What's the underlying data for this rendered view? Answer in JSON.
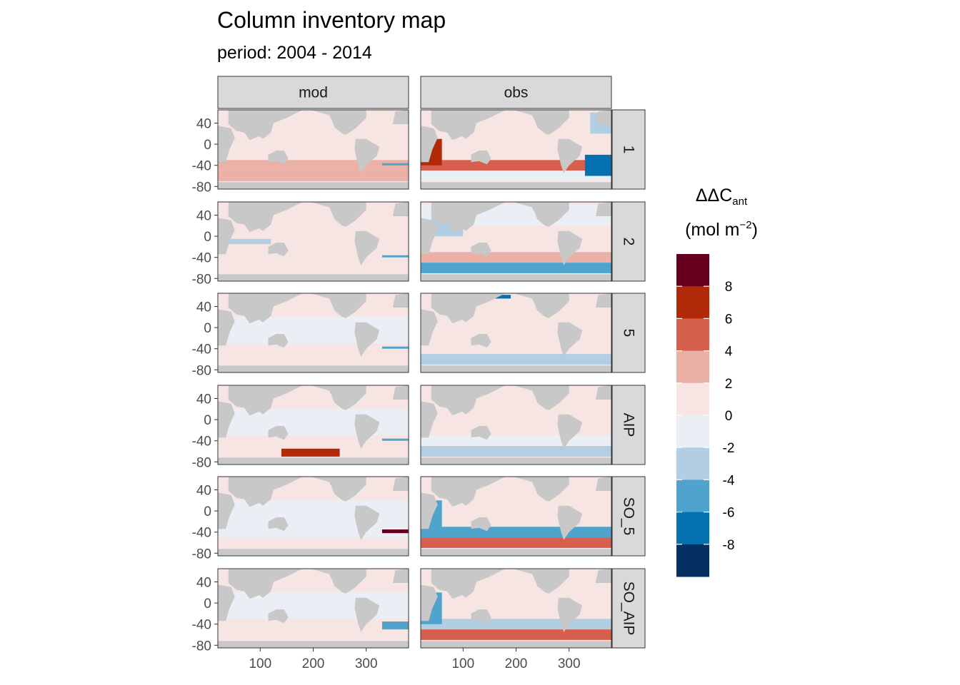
{
  "title": "Column inventory map",
  "subtitle": "period: 2004 - 2014",
  "chart_data": {
    "type": "heatmap",
    "title": "Column inventory map",
    "subtitle": "period: 2004 - 2014",
    "facet_columns": [
      "mod",
      "obs"
    ],
    "facet_rows": [
      "1",
      "2",
      "5",
      "AIP",
      "SO_5",
      "SO_AIP"
    ],
    "xlim": [
      20,
      380
    ],
    "ylim": [
      -85,
      65
    ],
    "x_ticks": [
      100,
      200,
      300
    ],
    "y_ticks": [
      40,
      0,
      -40,
      -80
    ],
    "grid": false,
    "land_color": "#c8c8c8",
    "legend": {
      "title_main": "ΔΔC",
      "title_sub": "ant",
      "unit": "(mol m",
      "unit_sup": "−2",
      "unit_close": ")",
      "placement": "right",
      "breaks": [
        8,
        6,
        4,
        2,
        0,
        -2,
        -4,
        -6,
        -8
      ],
      "colors": [
        "#67001f",
        "#b2290a",
        "#d6604d",
        "#ebb0a6",
        "#f7e5e3",
        "#e9eff5",
        "#b3cde3",
        "#4fa3cc",
        "#0571b0",
        "#053061"
      ]
    },
    "panels": [
      {
        "col": "mod",
        "row": "1",
        "bands": [
          {
            "lat": [
              20,
              60
            ],
            "value": 1
          },
          {
            "lat": [
              -30,
              20
            ],
            "value": 1
          },
          {
            "lat": [
              -50,
              -30
            ],
            "value": 3
          },
          {
            "lat": [
              -70,
              -50
            ],
            "value": 2
          }
        ],
        "spots": [
          {
            "lon": [
              330,
              380
            ],
            "lat": [
              -40,
              -36
            ],
            "value": -6
          }
        ]
      },
      {
        "col": "obs",
        "row": "1",
        "bands": [
          {
            "lat": [
              20,
              60
            ],
            "value": 1
          },
          {
            "lat": [
              -30,
              20
            ],
            "value": 1
          },
          {
            "lat": [
              -50,
              -30
            ],
            "value": 4
          },
          {
            "lat": [
              -70,
              -50
            ],
            "value": -2
          }
        ],
        "spots": [
          {
            "lon": [
              20,
              60
            ],
            "lat": [
              -40,
              10
            ],
            "value": 7
          },
          {
            "lon": [
              330,
              380
            ],
            "lat": [
              -60,
              -20
            ],
            "value": -7
          },
          {
            "lon": [
              340,
              380
            ],
            "lat": [
              20,
              60
            ],
            "value": -4
          }
        ]
      },
      {
        "col": "mod",
        "row": "2",
        "bands": [
          {
            "lat": [
              20,
              60
            ],
            "value": 1
          },
          {
            "lat": [
              -30,
              20
            ],
            "value": 1
          },
          {
            "lat": [
              -50,
              -30
            ],
            "value": 1
          },
          {
            "lat": [
              -70,
              -50
            ],
            "value": 1
          }
        ],
        "spots": [
          {
            "lon": [
              40,
              120
            ],
            "lat": [
              -15,
              -5
            ],
            "value": -3
          },
          {
            "lon": [
              330,
              380
            ],
            "lat": [
              -40,
              -36
            ],
            "value": -6
          }
        ]
      },
      {
        "col": "obs",
        "row": "2",
        "bands": [
          {
            "lat": [
              20,
              60
            ],
            "value": -1
          },
          {
            "lat": [
              -30,
              20
            ],
            "value": 1
          },
          {
            "lat": [
              -50,
              -30
            ],
            "value": 3
          },
          {
            "lat": [
              -70,
              -50
            ],
            "value": -5
          }
        ],
        "spots": [
          {
            "lon": [
              40,
              100
            ],
            "lat": [
              0,
              40
            ],
            "value": -3
          }
        ]
      },
      {
        "col": "mod",
        "row": "5",
        "bands": [
          {
            "lat": [
              20,
              60
            ],
            "value": 1
          },
          {
            "lat": [
              -30,
              20
            ],
            "value": -1
          },
          {
            "lat": [
              -50,
              -30
            ],
            "value": 1
          },
          {
            "lat": [
              -70,
              -50
            ],
            "value": 1
          }
        ],
        "spots": [
          {
            "lon": [
              150,
              280
            ],
            "lat": [
              -15,
              5
            ],
            "value": -1
          },
          {
            "lon": [
              330,
              380
            ],
            "lat": [
              -40,
              -36
            ],
            "value": -6
          }
        ]
      },
      {
        "col": "obs",
        "row": "5",
        "bands": [
          {
            "lat": [
              20,
              60
            ],
            "value": 1
          },
          {
            "lat": [
              -30,
              20
            ],
            "value": 1
          },
          {
            "lat": [
              -50,
              -30
            ],
            "value": 1
          },
          {
            "lat": [
              -70,
              -50
            ],
            "value": -3
          }
        ],
        "spots": [
          {
            "lon": [
              150,
              190
            ],
            "lat": [
              55,
              62
            ],
            "value": -8
          }
        ]
      },
      {
        "col": "mod",
        "row": "AIP",
        "bands": [
          {
            "lat": [
              20,
              60
            ],
            "value": 1
          },
          {
            "lat": [
              -30,
              20
            ],
            "value": -1
          },
          {
            "lat": [
              -50,
              -30
            ],
            "value": 1
          },
          {
            "lat": [
              -70,
              -50
            ],
            "value": 1
          }
        ],
        "spots": [
          {
            "lon": [
              140,
              250
            ],
            "lat": [
              -70,
              -55
            ],
            "value": 6
          },
          {
            "lon": [
              330,
              380
            ],
            "lat": [
              -40,
              -36
            ],
            "value": -6
          }
        ]
      },
      {
        "col": "obs",
        "row": "AIP",
        "bands": [
          {
            "lat": [
              20,
              60
            ],
            "value": 1
          },
          {
            "lat": [
              -30,
              20
            ],
            "value": 1
          },
          {
            "lat": [
              -50,
              -30
            ],
            "value": -1
          },
          {
            "lat": [
              -70,
              -50
            ],
            "value": -3
          }
        ],
        "spots": []
      },
      {
        "col": "mod",
        "row": "SO_5",
        "bands": [
          {
            "lat": [
              20,
              60
            ],
            "value": 1
          },
          {
            "lat": [
              -30,
              20
            ],
            "value": -1
          },
          {
            "lat": [
              -50,
              -30
            ],
            "value": -1
          },
          {
            "lat": [
              -70,
              -50
            ],
            "value": 1
          }
        ],
        "spots": [
          {
            "lon": [
              330,
              380
            ],
            "lat": [
              -42,
              -35
            ],
            "value": 9
          }
        ]
      },
      {
        "col": "obs",
        "row": "SO_5",
        "bands": [
          {
            "lat": [
              20,
              60
            ],
            "value": 1
          },
          {
            "lat": [
              -30,
              20
            ],
            "value": 1
          },
          {
            "lat": [
              -50,
              -30
            ],
            "value": -6
          },
          {
            "lat": [
              -70,
              -50
            ],
            "value": 4
          }
        ],
        "spots": [
          {
            "lon": [
              20,
              60
            ],
            "lat": [
              -40,
              20
            ],
            "value": -5
          }
        ]
      },
      {
        "col": "mod",
        "row": "SO_AIP",
        "bands": [
          {
            "lat": [
              20,
              60
            ],
            "value": 1
          },
          {
            "lat": [
              -30,
              20
            ],
            "value": -1
          },
          {
            "lat": [
              -50,
              -30
            ],
            "value": 1
          },
          {
            "lat": [
              -70,
              -50
            ],
            "value": 1
          }
        ],
        "spots": [
          {
            "lon": [
              330,
              380
            ],
            "lat": [
              -50,
              -35
            ],
            "value": -6
          }
        ]
      },
      {
        "col": "obs",
        "row": "SO_AIP",
        "bands": [
          {
            "lat": [
              20,
              60
            ],
            "value": 1
          },
          {
            "lat": [
              -30,
              20
            ],
            "value": 1
          },
          {
            "lat": [
              -50,
              -30
            ],
            "value": -3
          },
          {
            "lat": [
              -70,
              -50
            ],
            "value": 5
          }
        ],
        "spots": [
          {
            "lon": [
              20,
              60
            ],
            "lat": [
              -40,
              20
            ],
            "value": -5
          }
        ]
      }
    ]
  }
}
